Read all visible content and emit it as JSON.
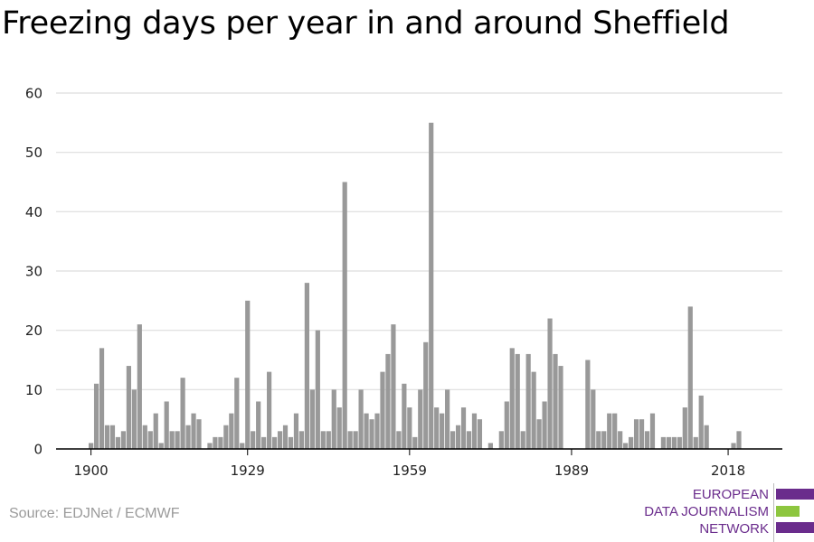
{
  "title": "Freezing days per year in and around Sheffield",
  "source": "Source: EDJNet / ECMWF",
  "logo": {
    "line1": "EUROPEAN",
    "line2": "DATA JOURNALISM",
    "line3": "NETWORK",
    "colors": {
      "purple": "#6a2c8c",
      "green": "#8dc63f"
    }
  },
  "colors": {
    "bar": "#999999",
    "grid": "#dddddd",
    "axis": "#000000"
  },
  "chart_data": {
    "type": "bar",
    "title": "Freezing days per year in and around Sheffield",
    "xlabel": "",
    "ylabel": "",
    "ylim": [
      0,
      60
    ],
    "yticks": [
      0,
      10,
      20,
      30,
      40,
      50,
      60
    ],
    "xticks": [
      1900,
      1929,
      1959,
      1989,
      2018
    ],
    "grid": true,
    "x_start": 1900,
    "x_end": 2021,
    "values": [
      1,
      11,
      17,
      4,
      4,
      2,
      3,
      14,
      10,
      21,
      4,
      3,
      6,
      1,
      8,
      3,
      3,
      12,
      4,
      6,
      5,
      0,
      1,
      2,
      2,
      4,
      6,
      12,
      1,
      25,
      3,
      8,
      2,
      13,
      2,
      3,
      4,
      2,
      6,
      3,
      28,
      10,
      20,
      3,
      3,
      10,
      7,
      45,
      3,
      3,
      10,
      6,
      5,
      6,
      13,
      16,
      21,
      3,
      11,
      7,
      2,
      10,
      18,
      55,
      7,
      6,
      10,
      3,
      4,
      7,
      3,
      6,
      5,
      0,
      1,
      0,
      3,
      8,
      17,
      16,
      3,
      16,
      13,
      5,
      8,
      22,
      16,
      14,
      0,
      0,
      0,
      0,
      15,
      10,
      3,
      3,
      6,
      6,
      3,
      1,
      2,
      5,
      5,
      3,
      6,
      0,
      2,
      2,
      2,
      2,
      7,
      24,
      2,
      9,
      4,
      0,
      0,
      0,
      0,
      1,
      3,
      0
    ]
  }
}
